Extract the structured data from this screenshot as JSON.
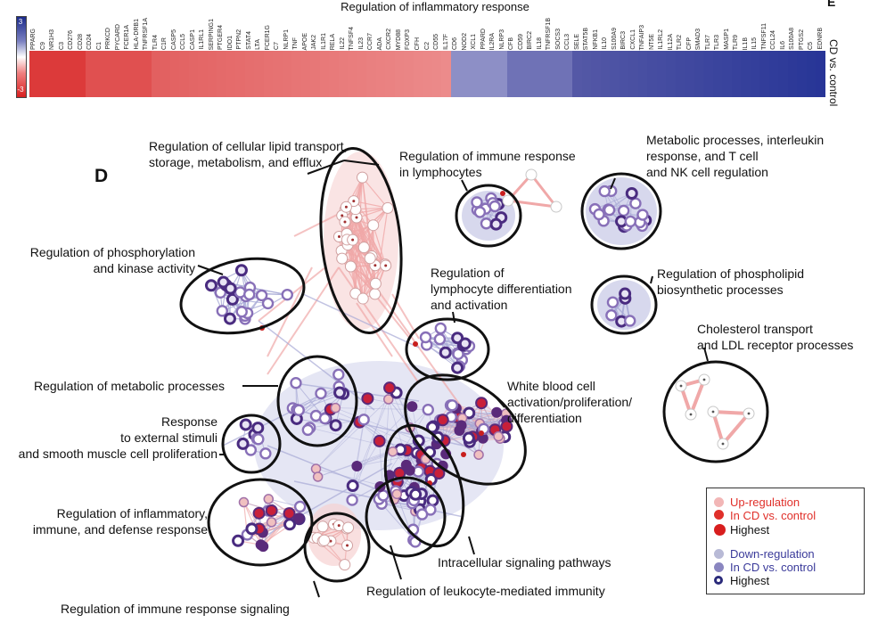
{
  "heatmap": {
    "title": "Regulation of inflammatory response",
    "panel_letter": "E",
    "row_label": "CD vs. control",
    "scale_max": "3",
    "scale_min": "-3",
    "genes": [
      "PPARG",
      "C9",
      "NR1H3",
      "C3",
      "CD276",
      "CD28",
      "CD24",
      "C1",
      "PRKCD",
      "PYCARD",
      "FCER1A",
      "HLA-DRB1",
      "TNFRSF1A",
      "TLR4",
      "C1R",
      "CASP5",
      "CCL5",
      "CASP1",
      "IL1RL1",
      "SERPING1",
      "PTGER4",
      "IDO1",
      "PTPN2",
      "STAT4",
      "LTA",
      "FCER1G",
      "C7",
      "NLRP1",
      "TNF",
      "APOE",
      "JAK2",
      "IL1R1",
      "RELA",
      "IL22",
      "TNFSF4",
      "IL23",
      "CCR7",
      "ADA",
      "CXCR2",
      "MYD88",
      "FOXP3",
      "CFH",
      "C2",
      "CD55",
      "IL17F",
      "CD6",
      "NOD2",
      "XCL1",
      "PPARD",
      "IL2RA",
      "NLRP3",
      "CFB",
      "CD59",
      "BIRC2",
      "IL18",
      "TNFRSF1B",
      "SOCS3",
      "CCL3",
      "SELE",
      "STAT5B",
      "NFKB1",
      "IL10",
      "S100A9",
      "BIRC3",
      "CXCL1",
      "TNFAIP3",
      "NT5E",
      "IL1RL2",
      "IL12A",
      "TLR2",
      "CFP",
      "SMAD3",
      "TLR7",
      "TLR3",
      "MASP1",
      "TLR9",
      "IL1B",
      "IL15",
      "TNFSF11",
      "CCL24",
      "IL6",
      "S100A8",
      "PTGS2",
      "C5",
      "EDNRB"
    ],
    "colors": {
      "up": "#d81e1e",
      "down": "#1b2a8a"
    }
  },
  "network": {
    "panel_letter": "D",
    "clusters": [
      {
        "id": "lipid",
        "label": "Regulation of cellular lipid transport,\nstorage, metabolism, and efflux"
      },
      {
        "id": "immune-lymph",
        "label": "Regulation of immune response\nin lymphocytes"
      },
      {
        "id": "metabolic-il",
        "label": "Metabolic processes, interleukin\nresponse, and T cell\nand NK cell regulation"
      },
      {
        "id": "phosphorylation",
        "label": "Regulation of phosphorylation\nand kinase activity"
      },
      {
        "id": "lymph-diff",
        "label": "Regulation of\nlymphocyte differentiation\nand activation"
      },
      {
        "id": "phospholipid",
        "label": "Regulation of phospholipid\nbiosynthetic processes"
      },
      {
        "id": "cholesterol",
        "label": "Cholesterol transport\nand LDL receptor processes"
      },
      {
        "id": "metabolic",
        "label": "Regulation of metabolic processes"
      },
      {
        "id": "wbc",
        "label": "White blood cell\nactivation/proliferation/\ndifferentiation"
      },
      {
        "id": "external",
        "label": "Response\nto external stimuli\nand smooth muscle cell proliferation"
      },
      {
        "id": "inflammatory",
        "label": "Regulation of inflammatory,\nimmune, and defense response"
      },
      {
        "id": "intracellular",
        "label": "Intracellular signaling pathways"
      },
      {
        "id": "leukocyte",
        "label": "Regulation of leukocyte-mediated immunity"
      },
      {
        "id": "immune-signal",
        "label": "Regulation of immune response signaling"
      }
    ]
  },
  "legend": {
    "up_line1": "Up-regulation",
    "up_line2": "In CD vs. control",
    "up_highest": "Highest",
    "down_line1": "Down-regulation",
    "down_line2": "In CD vs. control",
    "down_highest": "Highest",
    "colors": {
      "up_text": "#e0302a",
      "down_text": "#3a3a9a"
    }
  }
}
